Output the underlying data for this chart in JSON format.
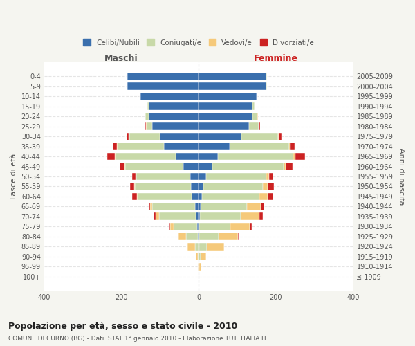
{
  "age_groups": [
    "100+",
    "95-99",
    "90-94",
    "85-89",
    "80-84",
    "75-79",
    "70-74",
    "65-69",
    "60-64",
    "55-59",
    "50-54",
    "45-49",
    "40-44",
    "35-39",
    "30-34",
    "25-29",
    "20-24",
    "15-19",
    "10-14",
    "5-9",
    "0-4"
  ],
  "birth_years": [
    "≤ 1909",
    "1910-1914",
    "1915-1919",
    "1920-1924",
    "1925-1929",
    "1930-1934",
    "1935-1939",
    "1940-1944",
    "1945-1949",
    "1950-1954",
    "1955-1959",
    "1960-1964",
    "1965-1969",
    "1970-1974",
    "1975-1979",
    "1980-1984",
    "1985-1989",
    "1990-1994",
    "1995-1999",
    "2000-2004",
    "2005-2009"
  ],
  "colors": {
    "celibi": "#3a6fad",
    "coniugati": "#c8d9a8",
    "vedovi": "#f5c97a",
    "divorziati": "#cc2222"
  },
  "maschi": {
    "celibi": [
      0,
      0,
      0,
      1,
      2,
      4,
      8,
      10,
      18,
      20,
      22,
      40,
      60,
      90,
      100,
      120,
      130,
      130,
      150,
      185,
      185
    ],
    "coniugati": [
      0,
      0,
      2,
      8,
      30,
      60,
      95,
      110,
      140,
      145,
      140,
      150,
      155,
      120,
      80,
      15,
      8,
      2,
      2,
      2,
      2
    ],
    "vedovi": [
      0,
      2,
      5,
      20,
      20,
      10,
      8,
      5,
      2,
      2,
      2,
      2,
      2,
      1,
      1,
      1,
      1,
      0,
      0,
      0,
      0
    ],
    "divorziati": [
      0,
      0,
      0,
      0,
      2,
      2,
      5,
      5,
      12,
      10,
      8,
      12,
      20,
      12,
      5,
      2,
      1,
      0,
      0,
      0,
      0
    ]
  },
  "femmine": {
    "celibi": [
      0,
      0,
      0,
      1,
      2,
      2,
      3,
      5,
      8,
      12,
      20,
      35,
      50,
      80,
      110,
      130,
      140,
      140,
      150,
      175,
      175
    ],
    "coniugati": [
      0,
      1,
      5,
      20,
      50,
      80,
      105,
      120,
      150,
      155,
      155,
      185,
      195,
      155,
      95,
      25,
      12,
      4,
      2,
      2,
      2
    ],
    "vedovi": [
      2,
      5,
      15,
      45,
      50,
      50,
      50,
      35,
      20,
      12,
      8,
      5,
      5,
      2,
      2,
      1,
      1,
      0,
      0,
      0,
      0
    ],
    "divorziati": [
      0,
      0,
      0,
      0,
      2,
      5,
      8,
      10,
      15,
      15,
      10,
      18,
      25,
      12,
      8,
      3,
      1,
      0,
      0,
      0,
      0
    ]
  },
  "title": "Popolazione per età, sesso e stato civile - 2010",
  "subtitle": "COMUNE DI CURNO (BG) - Dati ISTAT 1° gennaio 2010 - Elaborazione TUTTITALIA.IT",
  "xlabel_left": "Maschi",
  "xlabel_right": "Femmine",
  "ylabel_left": "Fasce di età",
  "ylabel_right": "Anni di nascita",
  "xlim": 400,
  "legend_labels": [
    "Celibi/Nubili",
    "Coniugati/e",
    "Vedovi/e",
    "Divorziati/e"
  ],
  "bg_color": "#f5f5f0",
  "plot_bg": "#ffffff"
}
